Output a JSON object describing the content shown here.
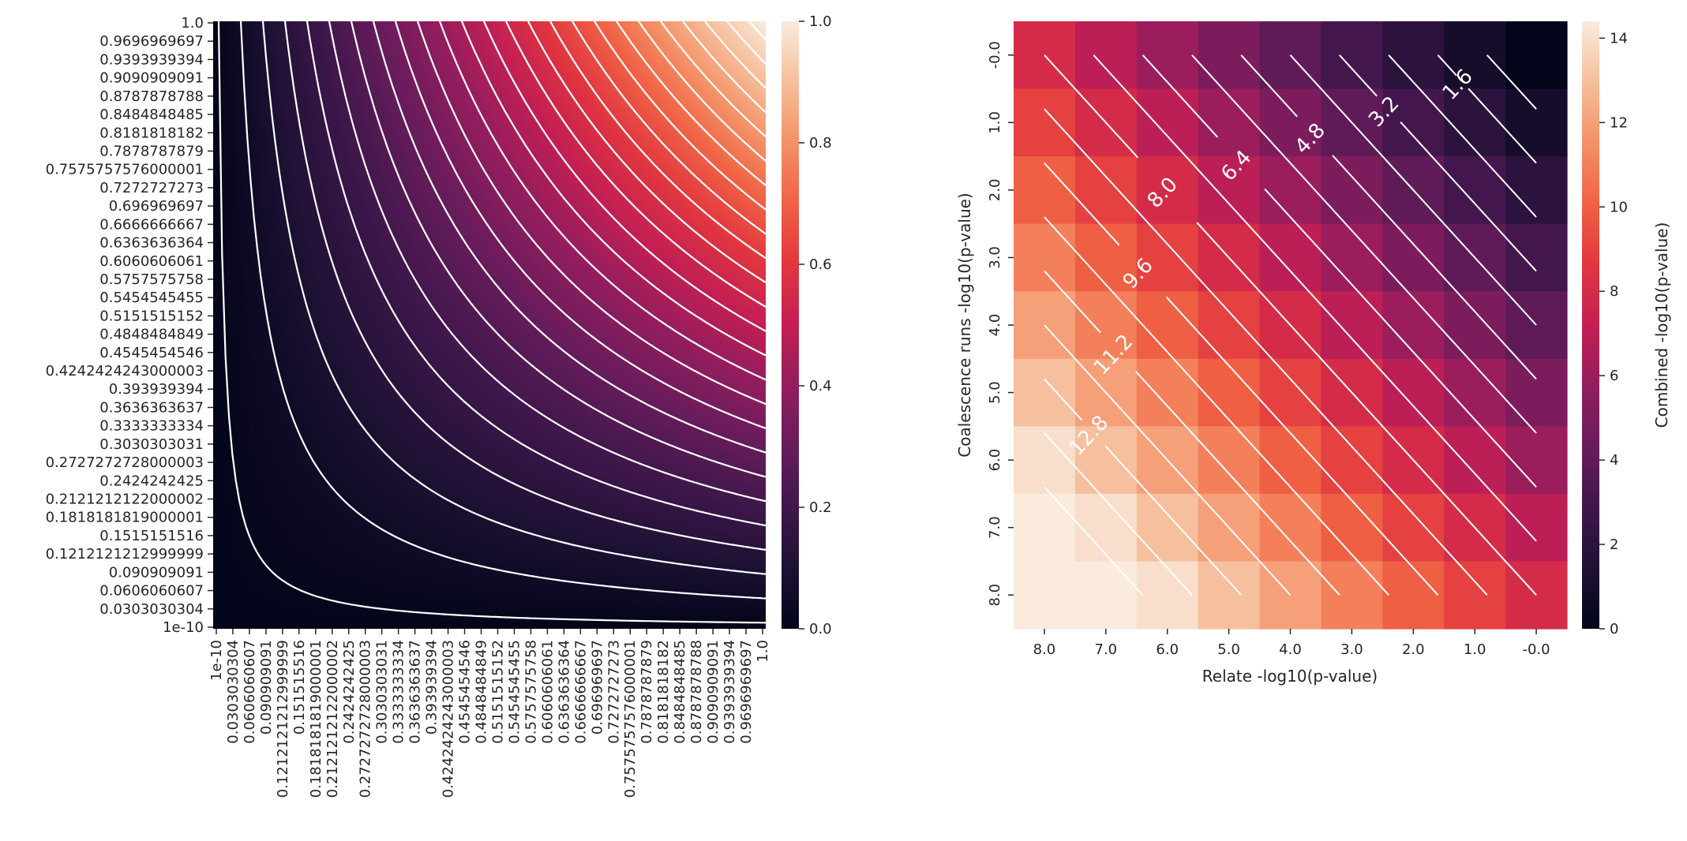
{
  "chart_data": [
    {
      "type": "heatmap",
      "x_tick_labels": [
        "1e-10",
        "0.0303030304",
        "0.0606060607",
        "0.090909091",
        "0.1212121212999999",
        "0.151515516",
        "0.1818181819000001",
        "0.2121212122000002",
        "0.2424242425",
        "0.2727272728000003",
        "0.3030303031",
        "0.3333333334",
        "0.3636363637",
        "0.393939394",
        "0.4242424243000003",
        "0.4545454546",
        "0.4848484849",
        "0.5151515152",
        "0.5454545455",
        "0.5757575758",
        "0.6060606061",
        "0.6363636364",
        "0.6666666667",
        "0.696969697",
        "0.7272727273",
        "0.7575757576000001",
        "0.7878787879",
        "0.8181818182",
        "0.8484848485",
        "0.8787878788",
        "0.9090909091",
        "0.9393939394",
        "0.9696969697",
        "1.0"
      ],
      "y_tick_labels": [
        "1.0",
        "0.9696969697",
        "0.9393939394",
        "0.9090909091",
        "0.8787878788",
        "0.8484848485",
        "0.8181818182",
        "0.7878787879",
        "0.7575757576000001",
        "0.7272727273",
        "0.696969697",
        "0.6666666667",
        "0.6363636364",
        "0.6060606061",
        "0.5757575758",
        "0.5454545455",
        "0.5151515152",
        "0.4848484849",
        "0.4545454546",
        "0.4242424243000003",
        "0.393939394",
        "0.3636363637",
        "0.3333333334",
        "0.3030303031",
        "0.2727272728000003",
        "0.2424242425",
        "0.2121212122000002",
        "0.1818181819000001",
        "0.1515151516",
        "0.1212121212999999",
        "0.090909091",
        "0.0606060607",
        "0.0303030304",
        "1e-10"
      ],
      "x_range": [
        0,
        1
      ],
      "y_range": [
        0,
        1
      ],
      "value_function": "x*y",
      "contour_levels": [
        0.01,
        0.05,
        0.09,
        0.13,
        0.17,
        0.21,
        0.25,
        0.29,
        0.33,
        0.37,
        0.41,
        0.45,
        0.49,
        0.53,
        0.57,
        0.61,
        0.65,
        0.69,
        0.73,
        0.77,
        0.81,
        0.85,
        0.89,
        0.93,
        0.97
      ],
      "colorbar": {
        "ticks": [
          "0.0",
          "0.2",
          "0.4",
          "0.6",
          "0.8",
          "1.0"
        ],
        "range": [
          0,
          1
        ]
      },
      "colormap": "rocket",
      "xlabel": "",
      "ylabel": ""
    },
    {
      "type": "heatmap",
      "xlabel": "Relate -log10(p-value)",
      "ylabel": "Coalescence runs -log10(p-value)",
      "x_tick_labels": [
        "8.0",
        "7.0",
        "6.0",
        "5.0",
        "4.0",
        "3.0",
        "2.0",
        "1.0",
        "-0.0"
      ],
      "y_tick_labels": [
        "-0.0",
        "1.0",
        "2.0",
        "3.0",
        "4.0",
        "5.0",
        "6.0",
        "7.0",
        "8.0"
      ],
      "x_values": [
        8,
        7,
        6,
        5,
        4,
        3,
        2,
        1,
        0
      ],
      "y_values": [
        0,
        1,
        2,
        3,
        4,
        5,
        6,
        7,
        8
      ],
      "value_function": "x+y (combined -log10 p-value, 0 to ~14.4)",
      "vmax": 14.4,
      "contour_labels": [
        "1.6",
        "3.2",
        "4.8",
        "6.4",
        "8.0",
        "9.6",
        "11.2",
        "12.8"
      ],
      "colorbar": {
        "label": "Combined -log10(p-value)",
        "ticks": [
          "0",
          "2",
          "4",
          "6",
          "8",
          "10",
          "12",
          "14"
        ],
        "range": [
          0,
          14.4
        ]
      },
      "colormap": "rocket"
    }
  ]
}
